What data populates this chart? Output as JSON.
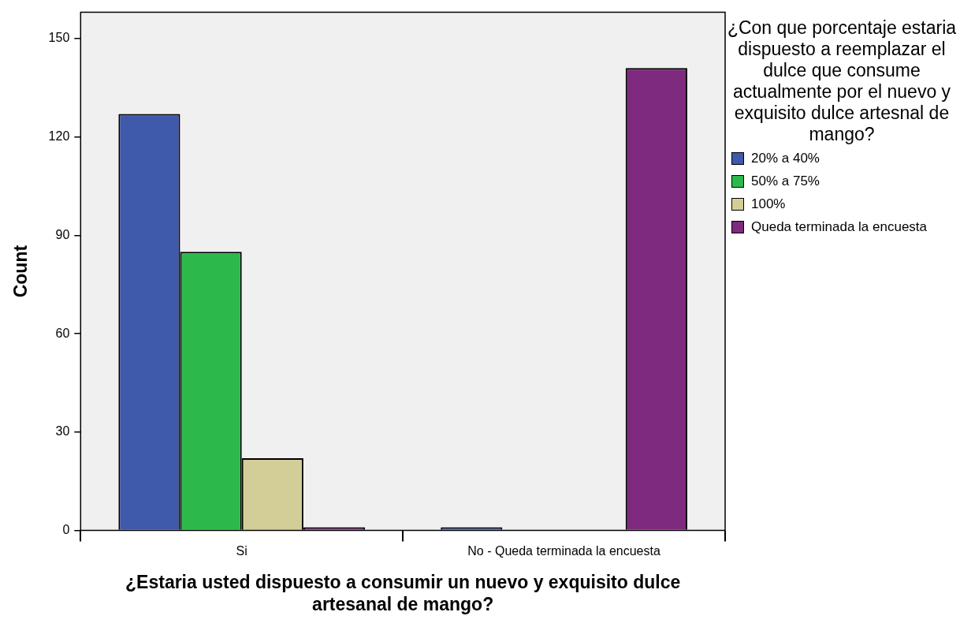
{
  "chart_data": {
    "type": "bar",
    "xlabel": "¿Estaria usted dispuesto a consumir un nuevo y exquisito dulce artesanal de mango?",
    "ylabel": "Count",
    "legend_title": "¿Con que porcentaje estaria dispuesto a reemplazar el dulce que consume actualmente por el nuevo y exquisito dulce artesnal de mango?",
    "categories": [
      "Si",
      "No - Queda terminada la encuesta"
    ],
    "series": [
      {
        "name": "20% a 40%",
        "color": "#3f59ab",
        "values": [
          127,
          1
        ]
      },
      {
        "name": "50% a 75%",
        "color": "#2db84b",
        "values": [
          85,
          0
        ]
      },
      {
        "name": "100%",
        "color": "#d3ce97",
        "values": [
          22,
          0
        ]
      },
      {
        "name": "Queda terminada la encuesta",
        "color": "#7e2a7e",
        "values": [
          1,
          141
        ]
      }
    ],
    "ylim": [
      0,
      158
    ],
    "yticks": [
      0,
      30,
      60,
      90,
      120,
      150
    ],
    "grid": false,
    "legend": "right"
  }
}
